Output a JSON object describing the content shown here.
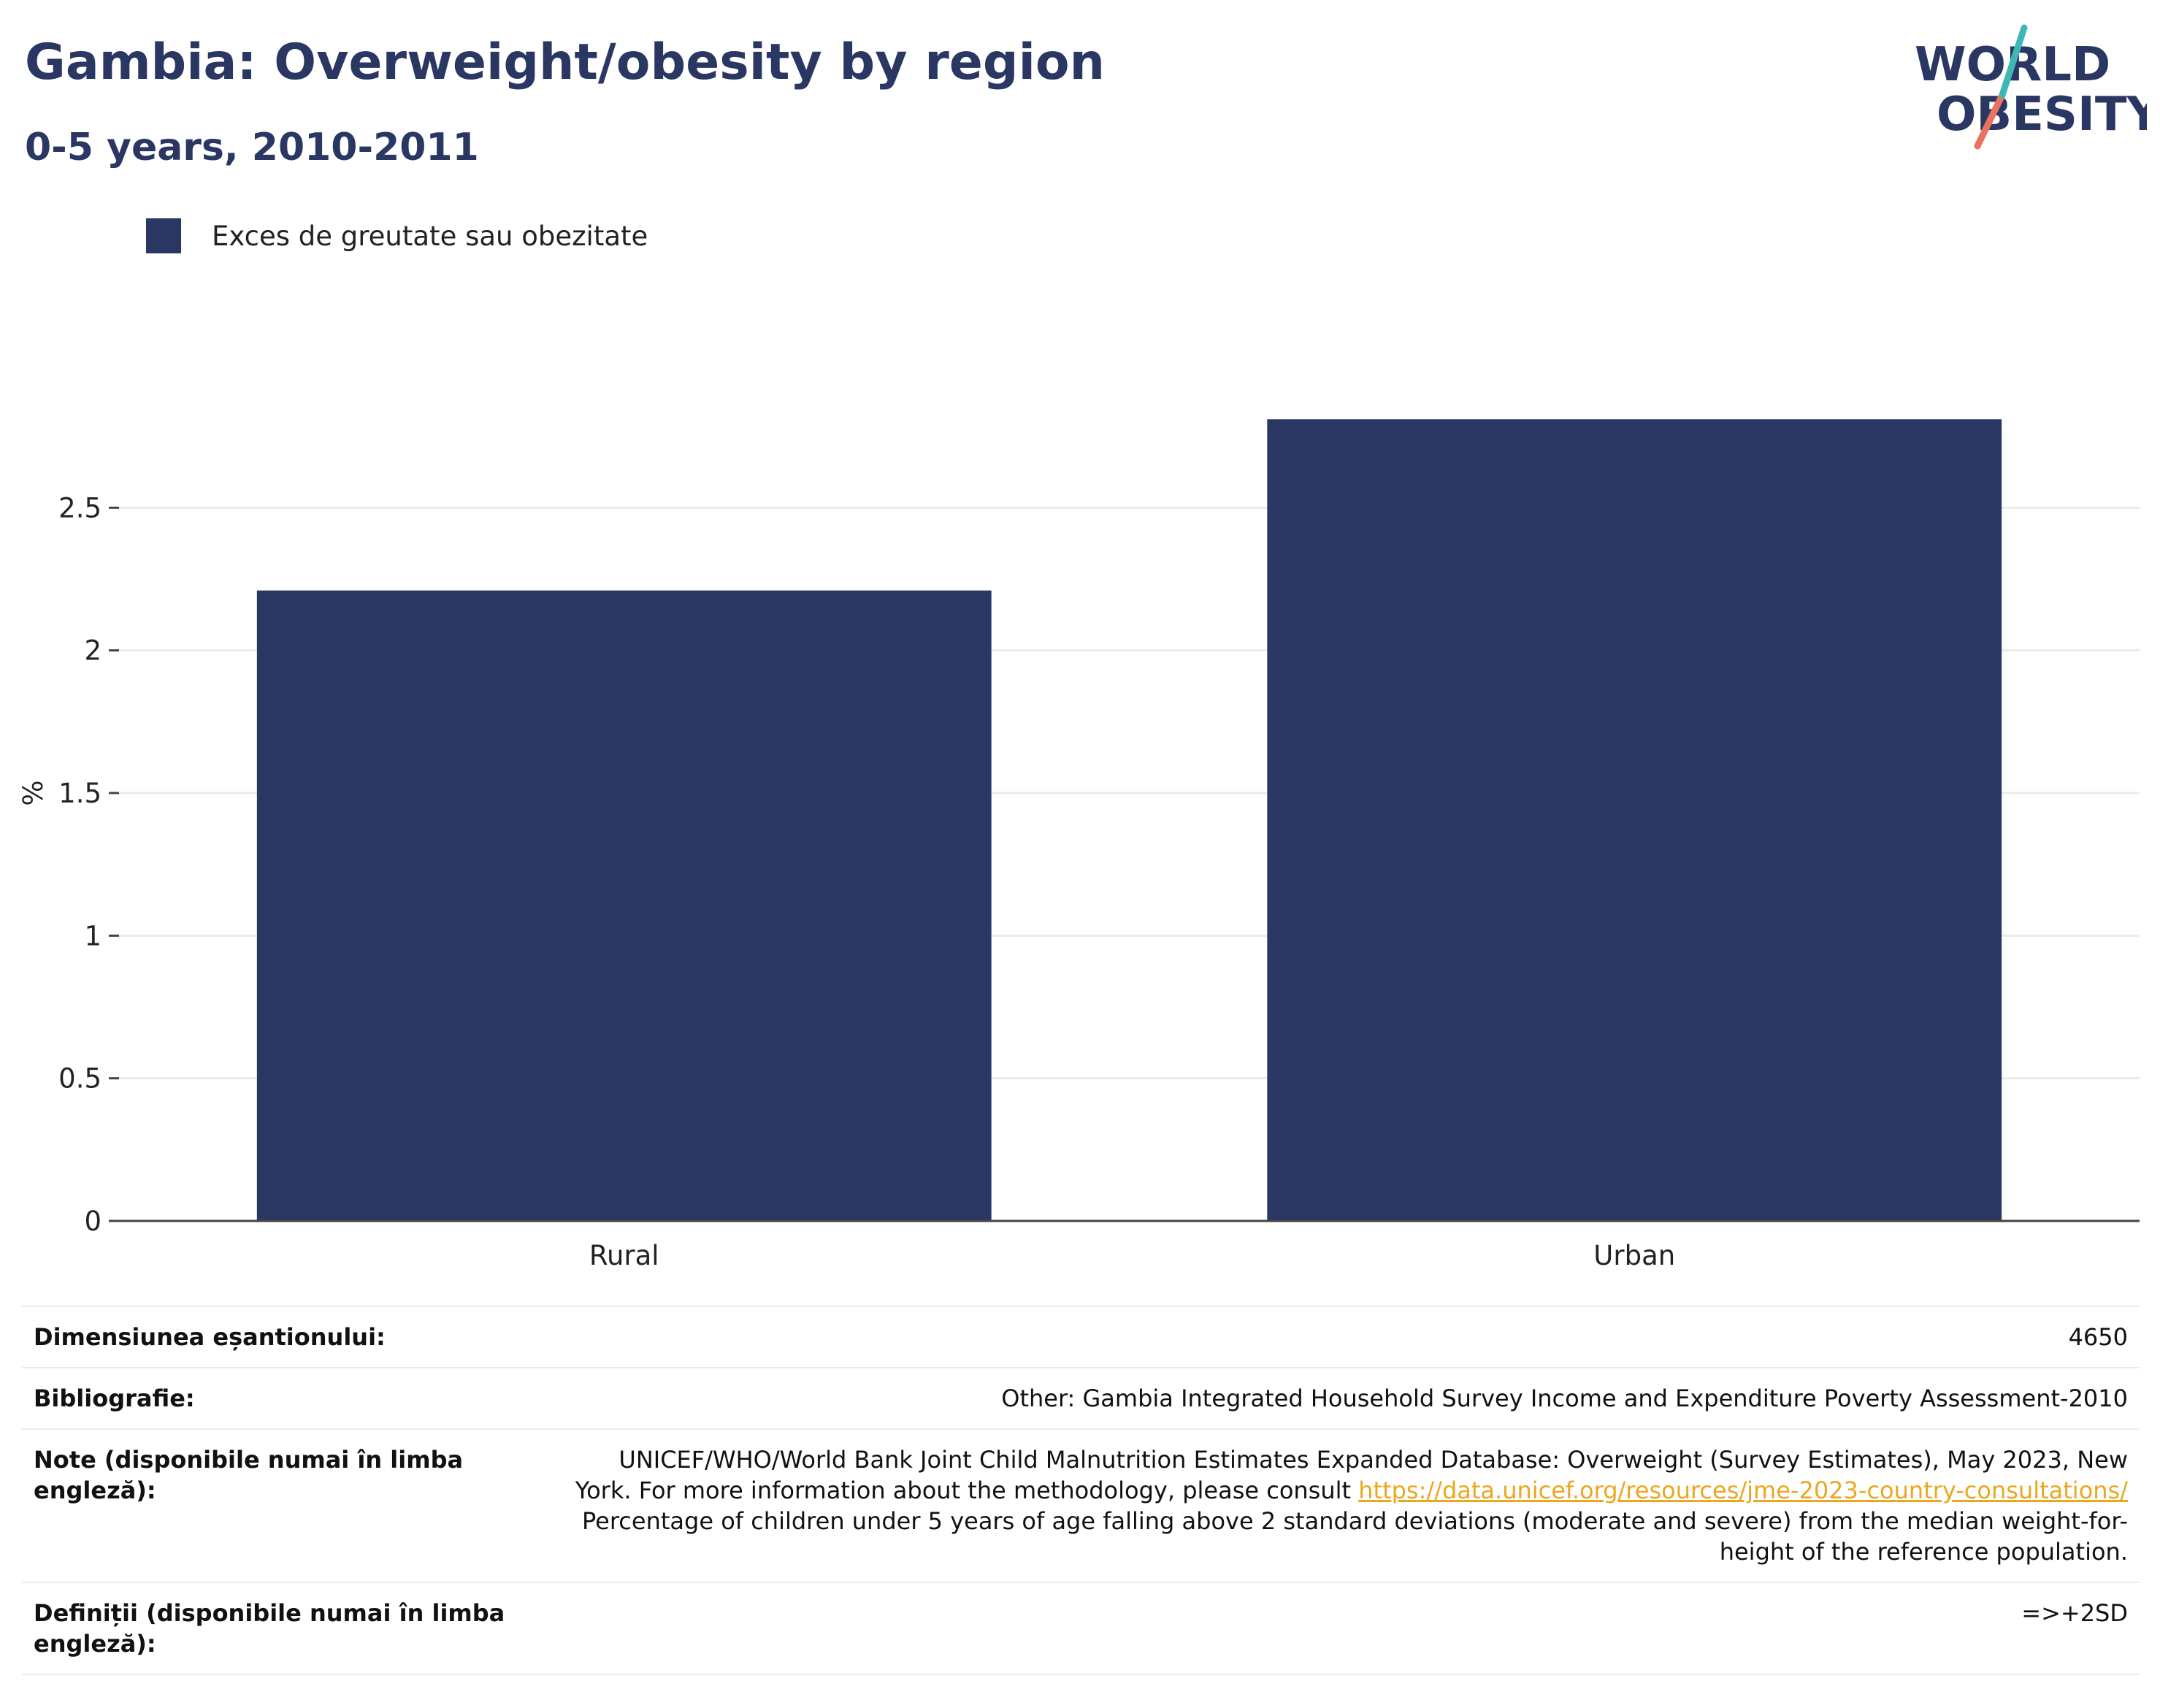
{
  "title": "Gambia: Overweight/obesity by region",
  "subtitle": "0-5 years, 2010-2011",
  "logo": {
    "line1": "WORLD",
    "line2": "OBESITY",
    "accent_teal": "#3fb8b5",
    "accent_coral": "#e8735f"
  },
  "legend": {
    "label": "Exces de greutate sau obezitate",
    "color": "#2a3762"
  },
  "chart_data": {
    "type": "bar",
    "categories": [
      "Rural",
      "Urban"
    ],
    "series": [
      {
        "name": "Exces de greutate sau obezitate",
        "values": [
          2.21,
          2.81
        ],
        "color": "#2a3762"
      }
    ],
    "ylabel": "%",
    "ylim": [
      0,
      3.0
    ],
    "yticks": [
      0,
      0.5,
      1,
      1.5,
      2,
      2.5
    ],
    "ytick_labels": [
      "0",
      "0.5",
      "1",
      "1.5",
      "2",
      "2.5"
    ],
    "grid": true,
    "legend_position": "top-left"
  },
  "info": {
    "sample_size_label": "Dimensiunea eșantionului:",
    "sample_size_value": "4650",
    "bibliography_label": "Bibliografie:",
    "bibliography_value": "Other: Gambia Integrated Household Survey Income and Expenditure Poverty Assessment-2010",
    "notes_label": "Note (disponibile numai în limba engleză):",
    "notes_text_1": "UNICEF/WHO/World Bank Joint Child Malnutrition Estimates Expanded Database: Overweight (Survey Estimates), May 2023, New York. For more information about the methodology, please consult ",
    "notes_link": "https://data.unicef.org/resources/jme-2023-country-consultations/",
    "notes_text_2": "Percentage of children under 5 years of age falling above 2 standard deviations (moderate and severe) from the median weight-for-height of the reference population.",
    "definitions_label": "Definiții (disponibile numai în limba engleză):",
    "definitions_value": "=>+2SD"
  }
}
